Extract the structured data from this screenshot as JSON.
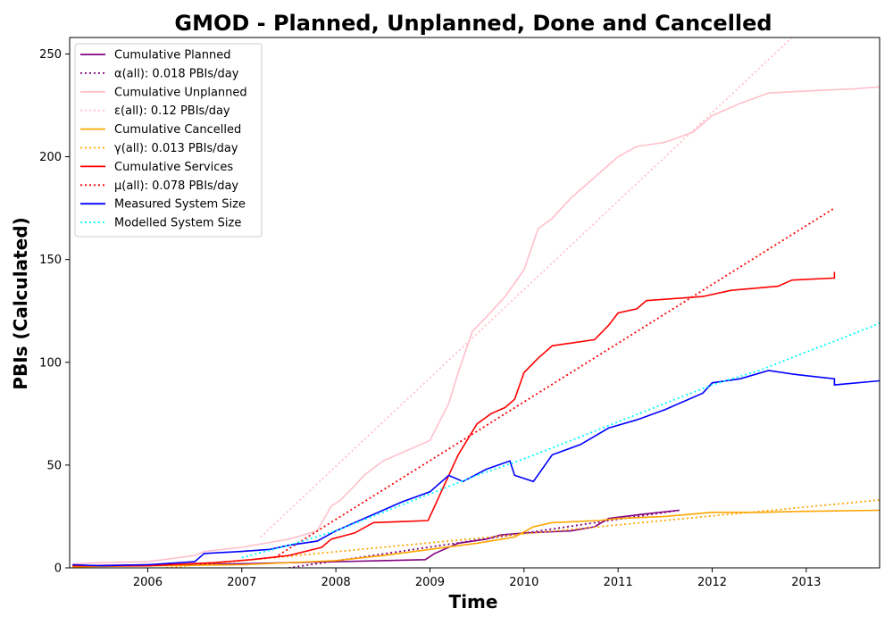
{
  "chart_data": {
    "type": "line",
    "title": "GMOD - Planned, Unplanned, Done  and Cancelled",
    "xlabel": "Time",
    "ylabel": "PBIs (Calculated)",
    "xlim": [
      2005.17,
      2013.78
    ],
    "ylim": [
      0,
      258
    ],
    "x_ticks": [
      2006,
      2007,
      2008,
      2009,
      2010,
      2011,
      2012,
      2013
    ],
    "y_ticks": [
      0,
      50,
      100,
      150,
      200,
      250
    ],
    "grid": false,
    "legend_position": "top-left",
    "series": [
      {
        "name": "Cumulative Planned",
        "color": "#800080",
        "style": "solid",
        "points": [
          [
            2005.2,
            1
          ],
          [
            2006.0,
            1.5
          ],
          [
            2007.0,
            2
          ],
          [
            2007.5,
            2.5
          ],
          [
            2008.0,
            3
          ],
          [
            2008.5,
            3.5
          ],
          [
            2008.95,
            4
          ],
          [
            2009.05,
            7
          ],
          [
            2009.3,
            12
          ],
          [
            2009.6,
            14
          ],
          [
            2009.75,
            16
          ],
          [
            2010.0,
            17
          ],
          [
            2010.5,
            18
          ],
          [
            2010.75,
            20
          ],
          [
            2010.9,
            24
          ],
          [
            2011.25,
            26
          ],
          [
            2011.65,
            28
          ]
        ]
      },
      {
        "name": "α(all): 0.018 PBIs/day",
        "color": "#800080",
        "style": "dotted",
        "points": [
          [
            2007.5,
            0
          ],
          [
            2011.65,
            28
          ]
        ]
      },
      {
        "name": "Cumulative Unplanned",
        "color": "#ffc0cb",
        "style": "solid",
        "points": [
          [
            2005.2,
            2
          ],
          [
            2005.5,
            2.5
          ],
          [
            2006.0,
            3
          ],
          [
            2006.5,
            6
          ],
          [
            2006.6,
            8
          ],
          [
            2007.0,
            10
          ],
          [
            2007.5,
            14
          ],
          [
            2007.8,
            18
          ],
          [
            2007.95,
            30
          ],
          [
            2008.05,
            33
          ],
          [
            2008.2,
            40
          ],
          [
            2008.3,
            45
          ],
          [
            2008.5,
            52
          ],
          [
            2008.7,
            56
          ],
          [
            2009.0,
            62
          ],
          [
            2009.2,
            80
          ],
          [
            2009.3,
            95
          ],
          [
            2009.45,
            115
          ],
          [
            2009.6,
            122
          ],
          [
            2009.8,
            132
          ],
          [
            2010.0,
            145
          ],
          [
            2010.15,
            165
          ],
          [
            2010.3,
            170
          ],
          [
            2010.5,
            180
          ],
          [
            2010.75,
            190
          ],
          [
            2011.0,
            200
          ],
          [
            2011.2,
            205
          ],
          [
            2011.5,
            207
          ],
          [
            2011.8,
            212
          ],
          [
            2012.0,
            220
          ],
          [
            2012.3,
            226
          ],
          [
            2012.6,
            231
          ],
          [
            2013.0,
            232
          ],
          [
            2013.5,
            233
          ],
          [
            2013.78,
            234
          ]
        ]
      },
      {
        "name": "ε(all): 0.12 PBIs/day",
        "color": "#ffc0cb",
        "style": "dotted",
        "points": [
          [
            2007.2,
            15
          ],
          [
            2012.85,
            258
          ]
        ]
      },
      {
        "name": "Cumulative Cancelled",
        "color": "#ffa500",
        "style": "solid",
        "points": [
          [
            2005.2,
            0.5
          ],
          [
            2007.0,
            1.5
          ],
          [
            2008.0,
            3.5
          ],
          [
            2008.5,
            6
          ],
          [
            2009.0,
            9
          ],
          [
            2009.5,
            12
          ],
          [
            2009.9,
            15
          ],
          [
            2010.1,
            20
          ],
          [
            2010.3,
            22
          ],
          [
            2010.8,
            23
          ],
          [
            2011.0,
            24
          ],
          [
            2011.5,
            25
          ],
          [
            2012.0,
            27
          ],
          [
            2012.5,
            27
          ],
          [
            2013.0,
            27.5
          ],
          [
            2013.78,
            28
          ]
        ]
      },
      {
        "name": "γ(all): 0.013 PBIs/day",
        "color": "#ffa500",
        "style": "dotted",
        "points": [
          [
            2006.2,
            0
          ],
          [
            2013.78,
            33
          ]
        ]
      },
      {
        "name": "Cumulative Services",
        "color": "#ff0000",
        "style": "solid",
        "points": [
          [
            2005.2,
            1
          ],
          [
            2006.0,
            1
          ],
          [
            2006.7,
            2.5
          ],
          [
            2007.1,
            4
          ],
          [
            2007.5,
            6
          ],
          [
            2007.85,
            10
          ],
          [
            2007.95,
            14
          ],
          [
            2008.2,
            17
          ],
          [
            2008.4,
            22
          ],
          [
            2008.7,
            22.5
          ],
          [
            2008.98,
            23
          ],
          [
            2009.1,
            35
          ],
          [
            2009.3,
            55
          ],
          [
            2009.5,
            70
          ],
          [
            2009.65,
            75
          ],
          [
            2009.8,
            78
          ],
          [
            2009.9,
            82
          ],
          [
            2010.0,
            95
          ],
          [
            2010.15,
            102
          ],
          [
            2010.3,
            108
          ],
          [
            2010.75,
            111
          ],
          [
            2010.9,
            118
          ],
          [
            2011.0,
            124
          ],
          [
            2011.2,
            126
          ],
          [
            2011.3,
            130
          ],
          [
            2011.9,
            132
          ],
          [
            2012.2,
            135
          ],
          [
            2012.7,
            137
          ],
          [
            2012.85,
            140
          ],
          [
            2013.3,
            141
          ],
          [
            2013.3,
            144
          ]
        ]
      },
      {
        "name": "μ(all): 0.078 PBIs/day",
        "color": "#ff0000",
        "style": "dotted",
        "points": [
          [
            2007.35,
            5
          ],
          [
            2013.3,
            175
          ]
        ]
      },
      {
        "name": "Measured System Size",
        "color": "#0000ff",
        "style": "solid",
        "points": [
          [
            2005.2,
            1.5
          ],
          [
            2005.5,
            1
          ],
          [
            2006.0,
            1.5
          ],
          [
            2006.5,
            3
          ],
          [
            2006.6,
            7
          ],
          [
            2007.0,
            8
          ],
          [
            2007.3,
            9
          ],
          [
            2007.5,
            11
          ],
          [
            2007.8,
            13
          ],
          [
            2008.0,
            18
          ],
          [
            2008.2,
            22
          ],
          [
            2008.5,
            28
          ],
          [
            2008.7,
            32
          ],
          [
            2009.0,
            37
          ],
          [
            2009.2,
            45
          ],
          [
            2009.35,
            42
          ],
          [
            2009.6,
            48
          ],
          [
            2009.85,
            52
          ],
          [
            2009.9,
            45
          ],
          [
            2010.1,
            42
          ],
          [
            2010.3,
            55
          ],
          [
            2010.6,
            60
          ],
          [
            2010.9,
            68
          ],
          [
            2011.2,
            72
          ],
          [
            2011.5,
            77
          ],
          [
            2011.9,
            85
          ],
          [
            2012.0,
            90
          ],
          [
            2012.3,
            92
          ],
          [
            2012.6,
            96
          ],
          [
            2012.9,
            94
          ],
          [
            2013.1,
            93
          ],
          [
            2013.3,
            92
          ],
          [
            2013.3,
            89
          ],
          [
            2013.78,
            91
          ]
        ]
      },
      {
        "name": "Modelled System Size",
        "color": "#00ffff",
        "style": "dotted",
        "points": [
          [
            2007.0,
            5
          ],
          [
            2007.5,
            11
          ],
          [
            2008.0,
            18
          ],
          [
            2008.5,
            27
          ],
          [
            2009.0,
            36
          ],
          [
            2009.5,
            45
          ],
          [
            2010.0,
            53
          ],
          [
            2010.5,
            62
          ],
          [
            2011.0,
            71
          ],
          [
            2011.5,
            80
          ],
          [
            2012.0,
            89
          ],
          [
            2012.5,
            96
          ],
          [
            2013.0,
            105
          ],
          [
            2013.4,
            112
          ],
          [
            2013.78,
            119
          ]
        ]
      }
    ]
  }
}
